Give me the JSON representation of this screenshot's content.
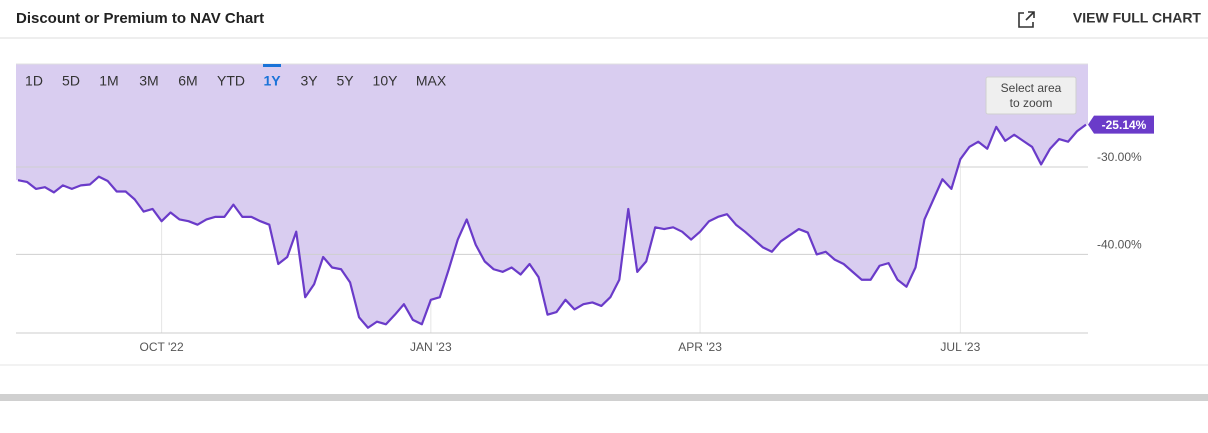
{
  "header": {
    "title": "Discount or Premium to NAV Chart",
    "link": "VIEW FULL CHART"
  },
  "range_buttons": {
    "items": [
      "1D",
      "5D",
      "1M",
      "3M",
      "6M",
      "YTD",
      "1Y",
      "3Y",
      "5Y",
      "10Y",
      "MAX"
    ],
    "selected": 6
  },
  "zoom_hint": [
    "Select area",
    "to zoom"
  ],
  "chart_data": {
    "type": "line",
    "categories": [
      null,
      null,
      null,
      null,
      null,
      null,
      null,
      null,
      null,
      null,
      null,
      null,
      null,
      null,
      null,
      null,
      "OCT '22",
      null,
      null,
      null,
      null,
      null,
      null,
      null,
      null,
      null,
      null,
      null,
      null,
      null,
      null,
      null,
      null,
      null,
      null,
      null,
      null,
      null,
      null,
      null,
      null,
      null,
      null,
      null,
      null,
      null,
      "JAN '23",
      null,
      null,
      null,
      null,
      null,
      null,
      null,
      null,
      null,
      null,
      null,
      null,
      null,
      null,
      null,
      null,
      null,
      null,
      null,
      null,
      null,
      null,
      null,
      null,
      null,
      null,
      null,
      null,
      null,
      "APR '23",
      null,
      null,
      null,
      null,
      null,
      null,
      null,
      null,
      null,
      null,
      null,
      null,
      null,
      null,
      null,
      null,
      null,
      null,
      null,
      null,
      null,
      null,
      null,
      null,
      null,
      null,
      null,
      null,
      "JUL '23",
      null,
      null,
      null,
      null,
      null,
      null,
      null,
      null,
      null,
      null,
      null,
      null,
      null,
      null
    ],
    "values": [
      -31.5,
      -31.7,
      -32.5,
      -32.3,
      -32.9,
      -32.1,
      -32.5,
      -32.1,
      -32.0,
      -31.1,
      -31.6,
      -32.8,
      -32.8,
      -33.7,
      -35.1,
      -34.8,
      -36.2,
      -35.2,
      -36.0,
      -36.2,
      -36.6,
      -36.0,
      -35.7,
      -35.7,
      -34.3,
      -35.7,
      -35.7,
      -36.2,
      -36.6,
      -41.1,
      -40.3,
      -37.4,
      -44.9,
      -43.4,
      -40.3,
      -41.5,
      -41.7,
      -43.2,
      -47.2,
      -48.4,
      -47.7,
      -48.0,
      -46.9,
      -45.7,
      -47.5,
      -48.0,
      -45.2,
      -44.9,
      -41.7,
      -38.3,
      -36.0,
      -38.9,
      -40.8,
      -41.7,
      -42.0,
      -41.5,
      -42.3,
      -41.1,
      -42.6,
      -46.9,
      -46.6,
      -45.2,
      -46.3,
      -45.7,
      -45.5,
      -45.9,
      -44.9,
      -42.9,
      -34.8,
      -42.0,
      -40.8,
      -36.9,
      -37.1,
      -36.9,
      -37.4,
      -38.3,
      -37.4,
      -36.2,
      -35.7,
      -35.4,
      -36.6,
      -37.4,
      -38.3,
      -39.2,
      -39.7,
      -38.5,
      -37.8,
      -37.1,
      -37.5,
      -40.0,
      -39.7,
      -40.6,
      -41.1,
      -42.0,
      -42.9,
      -42.9,
      -41.3,
      -41.0,
      -42.9,
      -43.7,
      -41.5,
      -36.0,
      -33.7,
      -31.4,
      -32.5,
      -29.1,
      -27.7,
      -27.1,
      -27.9,
      -25.4,
      -27.0,
      -26.3,
      -27.0,
      -27.7,
      -29.7,
      -27.9,
      -26.8,
      -27.1,
      -25.9,
      -25.14
    ],
    "value_labels": [
      null,
      null,
      null,
      null,
      null,
      null,
      null,
      null,
      null,
      null,
      null,
      null,
      null,
      null,
      null,
      null,
      null,
      null,
      null,
      null,
      null,
      null,
      null,
      null,
      null,
      null,
      null,
      null,
      null,
      null,
      null,
      null,
      null,
      null,
      null,
      null,
      null,
      null,
      null,
      null,
      null,
      null,
      null,
      null,
      null,
      null,
      null,
      null,
      null,
      null,
      null,
      null,
      null,
      null,
      null,
      null,
      null,
      null,
      null,
      null,
      null,
      null,
      null,
      null,
      null,
      null,
      null,
      null,
      null,
      null,
      null,
      null,
      null,
      null,
      null,
      null,
      null,
      null,
      null,
      null,
      null,
      null,
      null,
      null,
      null,
      null,
      null,
      null,
      null,
      null,
      null,
      null,
      null,
      null,
      null,
      null,
      null,
      null,
      null,
      null,
      null,
      null,
      null,
      null,
      null,
      null,
      null,
      null,
      null,
      null,
      null,
      null,
      null,
      null,
      null,
      null,
      null,
      null,
      null,
      "-25.14%"
    ],
    "ylim": [
      -49,
      -18.2
    ],
    "yticks": [
      {
        "value": -30,
        "label": "-30.00%"
      },
      {
        "value": -40,
        "label": "-40.00%"
      }
    ],
    "color": "#6a3bc9",
    "area_color": "#d9cdf0",
    "grid": true
  }
}
